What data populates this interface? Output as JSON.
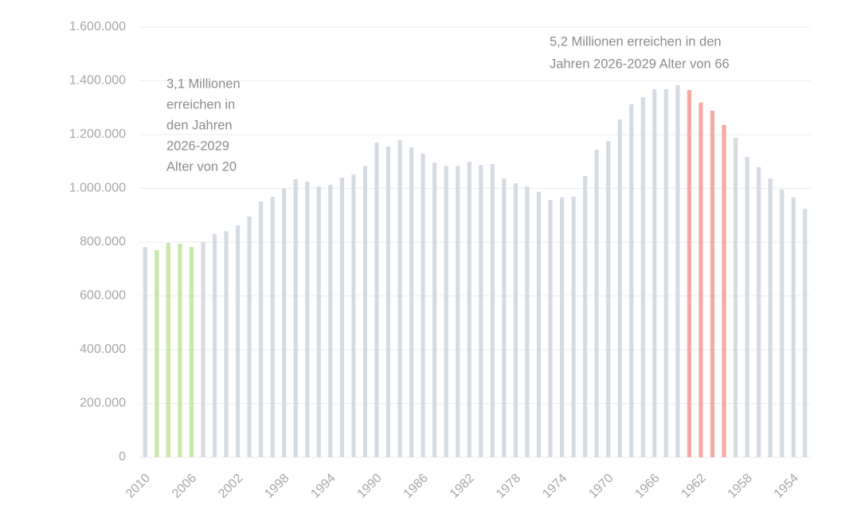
{
  "chart_data": {
    "type": "bar",
    "categories": [
      "2010",
      null,
      null,
      null,
      "2006",
      null,
      null,
      null,
      "2002",
      null,
      null,
      null,
      "1998",
      null,
      null,
      null,
      "1994",
      null,
      null,
      null,
      "1990",
      null,
      null,
      null,
      "1986",
      null,
      null,
      null,
      "1982",
      null,
      null,
      null,
      "1978",
      null,
      null,
      null,
      "1974",
      null,
      null,
      null,
      "1970",
      null,
      null,
      null,
      "1966",
      null,
      null,
      null,
      "1962",
      null,
      null,
      null,
      "1958",
      null,
      null,
      null,
      "1954",
      null
    ],
    "values": [
      782000,
      770000,
      797000,
      794000,
      782000,
      800000,
      830000,
      841000,
      862000,
      895000,
      951000,
      969000,
      999000,
      1034000,
      1025000,
      1007000,
      1013000,
      1040000,
      1052000,
      1084000,
      1170000,
      1156000,
      1179000,
      1153000,
      1129000,
      1096000,
      1084000,
      1084000,
      1099000,
      1087000,
      1090000,
      1037000,
      1019000,
      1007000,
      987000,
      957000,
      966000,
      969000,
      1046000,
      1144000,
      1176000,
      1256000,
      1313000,
      1339000,
      1369000,
      1369000,
      1384000,
      1366000,
      1319000,
      1289000,
      1236000,
      1188000,
      1117000,
      1079000,
      1037000,
      996000,
      966000,
      924000
    ],
    "colors": [
      "#d5dbe3",
      "#c8e8a8",
      "#c8e8a8",
      "#c8e8a8",
      "#c8e8a8",
      "#d5dbe3",
      "#d5dbe3",
      "#d5dbe3",
      "#d5dbe3",
      "#d5dbe3",
      "#d5dbe3",
      "#d5dbe3",
      "#d5dbe3",
      "#d5dbe3",
      "#d5dbe3",
      "#d5dbe3",
      "#d5dbe3",
      "#d5dbe3",
      "#d5dbe3",
      "#d5dbe3",
      "#d5dbe3",
      "#d5dbe3",
      "#d5dbe3",
      "#d5dbe3",
      "#d5dbe3",
      "#d5dbe3",
      "#d5dbe3",
      "#d5dbe3",
      "#d5dbe3",
      "#d5dbe3",
      "#d5dbe3",
      "#d5dbe3",
      "#d5dbe3",
      "#d5dbe3",
      "#d5dbe3",
      "#d5dbe3",
      "#d5dbe3",
      "#d5dbe3",
      "#d5dbe3",
      "#d5dbe3",
      "#d5dbe3",
      "#d5dbe3",
      "#d5dbe3",
      "#d5dbe3",
      "#d5dbe3",
      "#d5dbe3",
      "#d5dbe3",
      "#f2aaa2",
      "#f2aaa2",
      "#f2aaa2",
      "#f2aaa2",
      "#d5dbe3",
      "#d5dbe3",
      "#d5dbe3",
      "#d5dbe3",
      "#d5dbe3",
      "#d5dbe3",
      "#d5dbe3"
    ],
    "ylim": [
      0,
      1600000
    ],
    "yticks": [
      0,
      {
        "value": 200000,
        "label": "200.000"
      },
      {
        "value": 400000,
        "label": "400.000"
      },
      {
        "value": 600000,
        "label": "600.000"
      },
      {
        "value": 800000,
        "label": "800.000"
      },
      {
        "value": 1000000,
        "label": "1.000.000"
      },
      {
        "value": 1200000,
        "label": "1.200.000"
      },
      {
        "value": 1400000,
        "label": "1.400.000"
      },
      {
        "value": 1600000,
        "label": "1.600.000"
      }
    ],
    "grid": true,
    "annotations": [
      {
        "lines": [
          "3,1 Millionen",
          "erreichen in",
          "den Jahren",
          "2026-2029",
          "Alter von 20"
        ]
      },
      {
        "lines": [
          "5,2 Millionen erreichen in den",
          "Jahren 2026-2029 Alter von 66"
        ]
      }
    ]
  }
}
